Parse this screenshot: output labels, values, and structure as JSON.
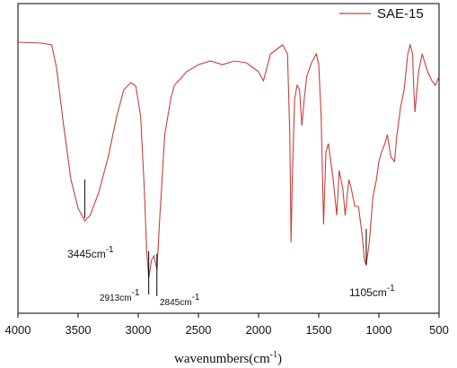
{
  "chart_data": {
    "type": "line",
    "x_label": "wavenumbers(cm",
    "x_label_sup": "-1",
    "x_label_end": ")",
    "xlim": [
      4000,
      500
    ],
    "xticks": [
      4000,
      3500,
      3000,
      2500,
      2000,
      1500,
      1000,
      500
    ],
    "ylim": [
      0,
      345
    ],
    "legend_position": "upper right",
    "series": [
      {
        "name": "SAE-15",
        "color": "#c8403a",
        "x": [
          4000,
          3800,
          3720,
          3680,
          3620,
          3560,
          3500,
          3445,
          3400,
          3330,
          3250,
          3180,
          3120,
          3060,
          3020,
          2980,
          2950,
          2930,
          2913,
          2890,
          2870,
          2845,
          2820,
          2780,
          2730,
          2700,
          2650,
          2600,
          2500,
          2400,
          2300,
          2200,
          2100,
          2050,
          2000,
          1960,
          1930,
          1900,
          1850,
          1800,
          1760,
          1740,
          1730,
          1720,
          1700,
          1680,
          1660,
          1640,
          1620,
          1600,
          1560,
          1520,
          1500,
          1480,
          1460,
          1440,
          1420,
          1400,
          1380,
          1350,
          1330,
          1300,
          1280,
          1250,
          1230,
          1200,
          1170,
          1140,
          1120,
          1105,
          1080,
          1050,
          1020,
          1000,
          980,
          950,
          930,
          900,
          870,
          850,
          820,
          790,
          760,
          740,
          720,
          710,
          700,
          690,
          670,
          640,
          600,
          560,
          530,
          500
        ],
        "values": [
          302,
          301,
          299,
          274,
          209,
          149,
          117,
          103,
          109,
          134,
          174,
          219,
          249,
          257,
          253,
          219,
          139,
          69,
          39,
          59,
          64,
          49,
          109,
          199,
          239,
          254,
          261,
          269,
          277,
          281,
          277,
          281,
          279,
          274,
          269,
          259,
          274,
          289,
          294,
          299,
          289,
          199,
          79,
          149,
          239,
          254,
          249,
          209,
          239,
          264,
          279,
          289,
          277,
          219,
          99,
          179,
          189,
          169,
          149,
          109,
          159,
          139,
          109,
          149,
          139,
          119,
          119,
          89,
          59,
          54,
          79,
          129,
          149,
          169,
          179,
          189,
          199,
          174,
          169,
          199,
          229,
          249,
          289,
          299,
          289,
          249,
          224,
          239,
          269,
          289,
          271,
          259,
          254,
          264
        ]
      }
    ],
    "annotations": [
      {
        "x": 3445,
        "label": "3445cm",
        "sup": "-1"
      },
      {
        "x": 2913,
        "label": "2913cm",
        "sup": "-1"
      },
      {
        "x": 2845,
        "label": "2845cm",
        "sup": "-1"
      },
      {
        "x": 1105,
        "label": "1105cm",
        "sup": "-1"
      }
    ]
  }
}
